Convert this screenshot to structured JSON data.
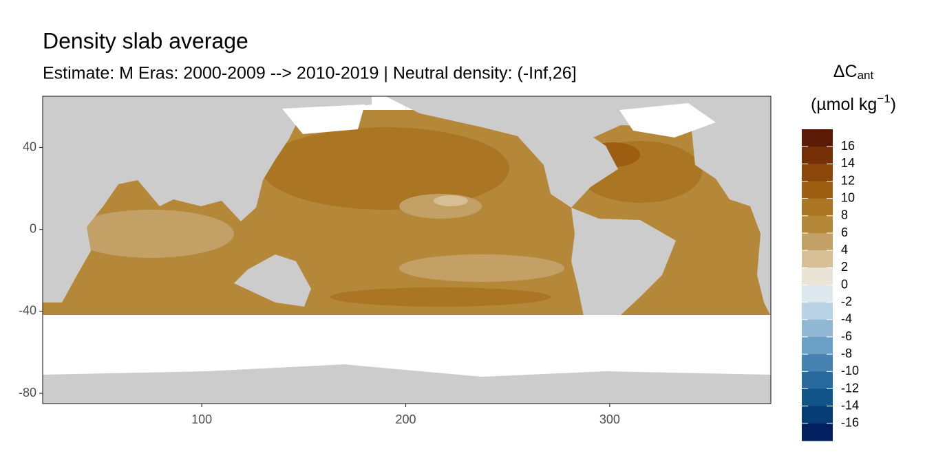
{
  "chart_data": {
    "type": "raster-map",
    "title": "Density slab average",
    "subtitle": "Estimate: M Eras: 2000-2009 --> 2010-2019 | Neutral density: (-Inf,26]",
    "xlim": [
      22,
      379
    ],
    "ylim": [
      -85,
      65
    ],
    "xticks": [
      100,
      200,
      300
    ],
    "yticks": [
      40,
      0,
      -40,
      -80
    ],
    "grid": true,
    "legend": {
      "title": "ΔC",
      "title_sub": "ant",
      "unit": "(µmol kg",
      "unit_sup": "−1",
      "unit_end": ")",
      "lim": [
        -18,
        18
      ],
      "ticks": [
        16,
        14,
        12,
        10,
        8,
        6,
        4,
        2,
        0,
        -2,
        -4,
        -6,
        -8,
        -10,
        -12,
        -14,
        -16
      ],
      "colors": [
        "#5a1a05",
        "#753008",
        "#8c4609",
        "#9e5e12",
        "#ab7623",
        "#b48838",
        "#c3a066",
        "#d6bf94",
        "#ebe3d6",
        "#dde8ef",
        "#b8d1e3",
        "#90b8d5",
        "#6a9fc6",
        "#4582b2",
        "#286a9d",
        "#115488",
        "#063d76",
        "#021f60"
      ]
    }
  }
}
